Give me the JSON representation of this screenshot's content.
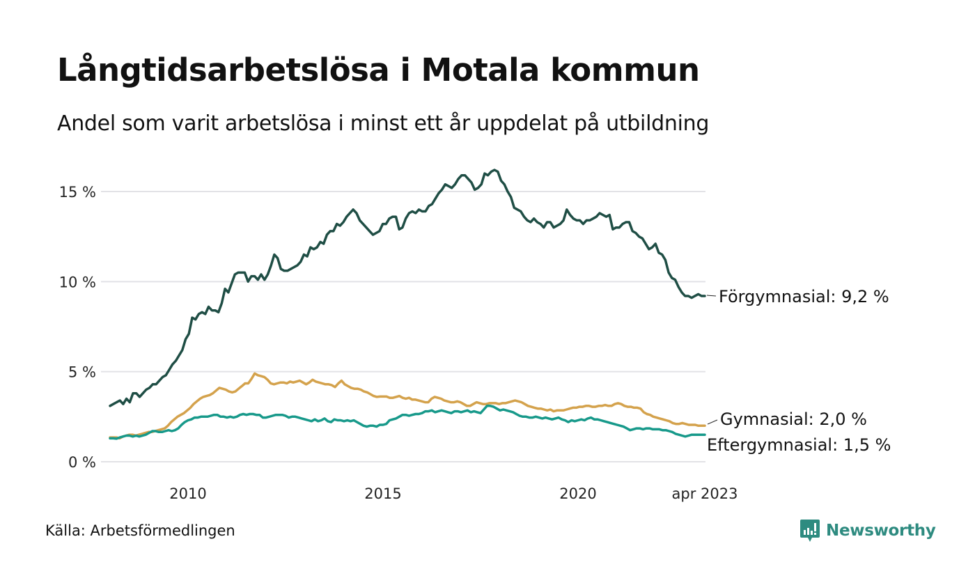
{
  "header": {
    "title": "Långtidsarbetslösa i Motala kommun",
    "subtitle": "Andel som varit arbetslösa i minst ett år uppdelat på utbildning"
  },
  "footer": {
    "source": "Källa: Arbetsförmedlingen",
    "brand": "Newsworthy",
    "brand_icon": "bar-chart-speech-bubble-icon",
    "brand_color": "#2e8b80"
  },
  "chart_data": {
    "type": "line",
    "title": "Långtidsarbetslösa i Motala kommun",
    "subtitle": "Andel som varit arbetslösa i minst ett år uppdelat på utbildning",
    "xlabel": "",
    "ylabel": "",
    "x_start": "2008-01",
    "x_end": "2023-04",
    "x_frequency": "monthly",
    "x_ticks": [
      {
        "label": "2010",
        "value": 2010.0
      },
      {
        "label": "2015",
        "value": 2015.0
      },
      {
        "label": "2020",
        "value": 2020.0
      },
      {
        "label": "apr 2023",
        "value": 2023.25
      }
    ],
    "y_ticks": [
      {
        "label": "0 %",
        "value": 0
      },
      {
        "label": "5 %",
        "value": 5
      },
      {
        "label": "10 %",
        "value": 10
      },
      {
        "label": "15 %",
        "value": 15
      }
    ],
    "ylim": [
      0,
      16.5
    ],
    "grid": true,
    "legend": "direct-labels-right",
    "series": [
      {
        "name": "Förgymnasial",
        "label": "Förgymnasial: 9,2 %",
        "color": "#1f4e45",
        "last_value": 9.2,
        "values": [
          3.1,
          3.2,
          3.3,
          3.4,
          3.2,
          3.5,
          3.3,
          3.8,
          3.8,
          3.6,
          3.8,
          4.0,
          4.1,
          4.3,
          4.3,
          4.5,
          4.7,
          4.8,
          5.1,
          5.4,
          5.6,
          5.9,
          6.2,
          6.8,
          7.1,
          8.0,
          7.9,
          8.2,
          8.3,
          8.2,
          8.6,
          8.4,
          8.4,
          8.3,
          8.8,
          9.6,
          9.4,
          9.9,
          10.4,
          10.5,
          10.5,
          10.5,
          10.0,
          10.3,
          10.3,
          10.1,
          10.4,
          10.1,
          10.4,
          10.9,
          11.5,
          11.3,
          10.7,
          10.6,
          10.6,
          10.7,
          10.8,
          10.9,
          11.1,
          11.5,
          11.4,
          11.9,
          11.8,
          11.9,
          12.2,
          12.1,
          12.6,
          12.8,
          12.8,
          13.2,
          13.1,
          13.3,
          13.6,
          13.8,
          14.0,
          13.8,
          13.4,
          13.2,
          13.0,
          12.8,
          12.6,
          12.7,
          12.8,
          13.2,
          13.2,
          13.5,
          13.6,
          13.6,
          12.9,
          13.0,
          13.5,
          13.8,
          13.9,
          13.8,
          14.0,
          13.9,
          13.9,
          14.2,
          14.3,
          14.6,
          14.9,
          15.1,
          15.4,
          15.3,
          15.2,
          15.4,
          15.7,
          15.9,
          15.9,
          15.7,
          15.5,
          15.1,
          15.2,
          15.4,
          16.0,
          15.9,
          16.1,
          16.2,
          16.1,
          15.6,
          15.4,
          15.0,
          14.7,
          14.1,
          14.0,
          13.9,
          13.6,
          13.4,
          13.3,
          13.5,
          13.3,
          13.2,
          13.0,
          13.3,
          13.3,
          13.0,
          13.1,
          13.2,
          13.4,
          14.0,
          13.7,
          13.5,
          13.4,
          13.4,
          13.2,
          13.4,
          13.4,
          13.5,
          13.6,
          13.8,
          13.7,
          13.6,
          13.7,
          12.9,
          13.0,
          13.0,
          13.2,
          13.3,
          13.3,
          12.8,
          12.7,
          12.5,
          12.4,
          12.1,
          11.8,
          11.9,
          12.1,
          11.6,
          11.5,
          11.2,
          10.5,
          10.2,
          10.1,
          9.7,
          9.4,
          9.2,
          9.2,
          9.1,
          9.2,
          9.3,
          9.2,
          9.2
        ]
      },
      {
        "name": "Gymnasial",
        "label": "Gymnasial: 2,0 %",
        "color": "#d4a24c",
        "last_value": 2.0,
        "values": [
          1.35,
          1.35,
          1.35,
          1.3,
          1.4,
          1.45,
          1.5,
          1.5,
          1.45,
          1.5,
          1.55,
          1.6,
          1.65,
          1.65,
          1.7,
          1.75,
          1.8,
          1.85,
          2.0,
          2.2,
          2.35,
          2.5,
          2.6,
          2.7,
          2.85,
          3.0,
          3.2,
          3.35,
          3.5,
          3.6,
          3.65,
          3.7,
          3.8,
          3.95,
          4.1,
          4.05,
          4.0,
          3.9,
          3.85,
          3.9,
          4.05,
          4.2,
          4.35,
          4.35,
          4.6,
          4.9,
          4.8,
          4.75,
          4.7,
          4.55,
          4.35,
          4.3,
          4.35,
          4.4,
          4.4,
          4.35,
          4.45,
          4.4,
          4.45,
          4.5,
          4.4,
          4.3,
          4.4,
          4.55,
          4.45,
          4.4,
          4.35,
          4.3,
          4.3,
          4.25,
          4.15,
          4.35,
          4.5,
          4.3,
          4.2,
          4.1,
          4.05,
          4.05,
          4.0,
          3.9,
          3.85,
          3.75,
          3.65,
          3.6,
          3.62,
          3.62,
          3.62,
          3.55,
          3.55,
          3.6,
          3.65,
          3.55,
          3.5,
          3.55,
          3.45,
          3.45,
          3.4,
          3.35,
          3.3,
          3.3,
          3.5,
          3.6,
          3.55,
          3.5,
          3.4,
          3.35,
          3.3,
          3.3,
          3.35,
          3.3,
          3.2,
          3.1,
          3.1,
          3.2,
          3.3,
          3.25,
          3.2,
          3.2,
          3.25,
          3.25,
          3.25,
          3.2,
          3.25,
          3.25,
          3.3,
          3.35,
          3.4,
          3.35,
          3.3,
          3.2,
          3.1,
          3.05,
          3.0,
          2.95,
          2.95,
          2.9,
          2.85,
          2.9,
          2.8,
          2.85,
          2.85,
          2.85,
          2.9,
          2.95,
          3.0,
          3.0,
          3.05,
          3.05,
          3.1,
          3.1,
          3.05,
          3.05,
          3.1,
          3.1,
          3.15,
          3.1,
          3.1,
          3.2,
          3.25,
          3.2,
          3.1,
          3.05,
          3.05,
          3.0,
          3.0,
          2.95,
          2.75,
          2.65,
          2.6,
          2.5,
          2.45,
          2.4,
          2.35,
          2.3,
          2.25,
          2.15,
          2.1,
          2.1,
          2.15,
          2.1,
          2.05,
          2.05,
          2.05,
          2.0,
          2.0,
          2.0
        ]
      },
      {
        "name": "Eftergymnasial",
        "label": "Eftergymnasial: 1,5 %",
        "color": "#17998a",
        "last_value": 1.5,
        "values": [
          1.3,
          1.3,
          1.28,
          1.35,
          1.4,
          1.45,
          1.45,
          1.4,
          1.45,
          1.4,
          1.45,
          1.5,
          1.6,
          1.7,
          1.7,
          1.65,
          1.65,
          1.7,
          1.75,
          1.7,
          1.75,
          1.85,
          2.05,
          2.2,
          2.3,
          2.35,
          2.45,
          2.45,
          2.5,
          2.5,
          2.5,
          2.55,
          2.6,
          2.6,
          2.5,
          2.5,
          2.45,
          2.5,
          2.45,
          2.5,
          2.6,
          2.65,
          2.6,
          2.65,
          2.65,
          2.6,
          2.6,
          2.45,
          2.45,
          2.5,
          2.55,
          2.6,
          2.6,
          2.6,
          2.55,
          2.45,
          2.5,
          2.5,
          2.45,
          2.4,
          2.35,
          2.3,
          2.25,
          2.35,
          2.25,
          2.3,
          2.4,
          2.25,
          2.2,
          2.35,
          2.3,
          2.3,
          2.25,
          2.3,
          2.25,
          2.3,
          2.2,
          2.1,
          2.0,
          1.95,
          2.0,
          2.0,
          1.95,
          2.05,
          2.05,
          2.1,
          2.3,
          2.35,
          2.4,
          2.5,
          2.6,
          2.6,
          2.55,
          2.6,
          2.65,
          2.65,
          2.7,
          2.8,
          2.8,
          2.85,
          2.75,
          2.8,
          2.85,
          2.8,
          2.75,
          2.7,
          2.8,
          2.8,
          2.75,
          2.8,
          2.85,
          2.75,
          2.8,
          2.75,
          2.7,
          2.9,
          3.1,
          3.1,
          3.05,
          2.95,
          2.85,
          2.9,
          2.85,
          2.8,
          2.75,
          2.65,
          2.55,
          2.5,
          2.5,
          2.45,
          2.45,
          2.5,
          2.45,
          2.4,
          2.45,
          2.4,
          2.35,
          2.4,
          2.45,
          2.35,
          2.3,
          2.2,
          2.3,
          2.25,
          2.3,
          2.35,
          2.3,
          2.4,
          2.45,
          2.35,
          2.35,
          2.3,
          2.25,
          2.2,
          2.15,
          2.1,
          2.05,
          2.0,
          1.95,
          1.85,
          1.75,
          1.8,
          1.85,
          1.85,
          1.8,
          1.85,
          1.85,
          1.8,
          1.8,
          1.8,
          1.75,
          1.75,
          1.7,
          1.65,
          1.55,
          1.5,
          1.45,
          1.4,
          1.45,
          1.5,
          1.5,
          1.5,
          1.5,
          1.5
        ]
      }
    ]
  }
}
